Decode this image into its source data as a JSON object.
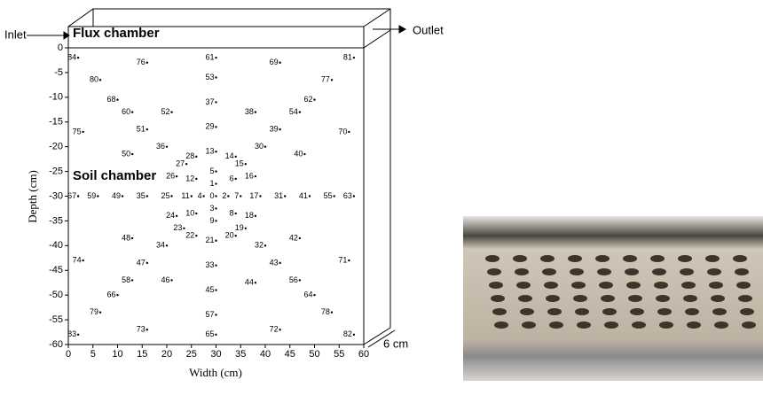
{
  "chart_data": {
    "type": "scatter",
    "xlabel": "Width (cm)",
    "ylabel": "Depth (cm)",
    "xlim": [
      0,
      60
    ],
    "ylim": [
      -60,
      0
    ],
    "xticks": [
      0,
      5,
      10,
      15,
      20,
      25,
      30,
      35,
      40,
      45,
      50,
      55,
      60
    ],
    "yticks": [
      0,
      -5,
      -10,
      -15,
      -20,
      -25,
      -30,
      -35,
      -40,
      -45,
      -50,
      -55,
      -60
    ],
    "annotations": {
      "inlet": "Inlet",
      "outlet": "Outlet",
      "flux": "Flux chamber",
      "soil": "Soil chamber",
      "depth": "6 cm"
    },
    "color": "#000000",
    "point_labels": [
      "84",
      "76",
      "61",
      "69",
      "81",
      "80",
      "53",
      "77",
      "68",
      "37",
      "62",
      "60",
      "52",
      "38",
      "54",
      "75",
      "51",
      "29",
      "39",
      "70",
      "36",
      "13",
      "30",
      "50",
      "28",
      "14",
      "40",
      "27",
      "15",
      "5",
      "26",
      "12",
      "6",
      "16",
      "1",
      "67",
      "59",
      "49",
      "35",
      "25",
      "11",
      "4",
      "0",
      "2",
      "7",
      "17",
      "31",
      "41",
      "55",
      "63",
      "3",
      "10",
      "8",
      "24",
      "18",
      "9",
      "23",
      "19",
      "22",
      "20",
      "21",
      "48",
      "42",
      "34",
      "32",
      "74",
      "47",
      "33",
      "43",
      "71",
      "58",
      "46",
      "44",
      "56",
      "66",
      "45",
      "64",
      "79",
      "57",
      "78",
      "73",
      "72",
      "83",
      "65",
      "82"
    ],
    "x": [
      2,
      16,
      30,
      43,
      58,
      6.5,
      30,
      53.5,
      10,
      30,
      50,
      13,
      21,
      38,
      47,
      3,
      16,
      30,
      43,
      57,
      20,
      30,
      40,
      13,
      26,
      34,
      48,
      24,
      36,
      30,
      22,
      26,
      34,
      38,
      30,
      2,
      6,
      11,
      16,
      21,
      25,
      27.5,
      30,
      32.5,
      35,
      39,
      44,
      49,
      54,
      58,
      30,
      26,
      34,
      22,
      38,
      30,
      23.5,
      36,
      26,
      34,
      30,
      13,
      47,
      20,
      40,
      3,
      16,
      30,
      43,
      57,
      13,
      21,
      38,
      47,
      10,
      30,
      50,
      6.5,
      30,
      53.5,
      16,
      43,
      2,
      30,
      58
    ],
    "values": [
      -2,
      -3,
      -2,
      -3,
      -2,
      -6.5,
      -6,
      -6.5,
      -10.5,
      -11,
      -10.5,
      -13,
      -13,
      -13,
      -13,
      -17,
      -16.5,
      -16,
      -16.5,
      -17,
      -20,
      -21,
      -20,
      -21.5,
      -22,
      -22,
      -21.5,
      -23.5,
      -23.5,
      -25,
      -26,
      -26.5,
      -26.5,
      -26,
      -27.5,
      -30,
      -30,
      -30,
      -30,
      -30,
      -30,
      -30,
      -30,
      -30,
      -30,
      -30,
      -30,
      -30,
      -30,
      -30,
      -32.5,
      -33.5,
      -33.5,
      -34,
      -34,
      -35,
      -36.5,
      -36.5,
      -38,
      -38,
      -39,
      -38.5,
      -38.5,
      -40,
      -40,
      -43,
      -43.5,
      -44,
      -43.5,
      -43,
      -47,
      -47,
      -47.5,
      -47,
      -50,
      -49,
      -50,
      -53.5,
      -54,
      -53.5,
      -57,
      -57,
      -58,
      -58,
      -58
    ]
  }
}
